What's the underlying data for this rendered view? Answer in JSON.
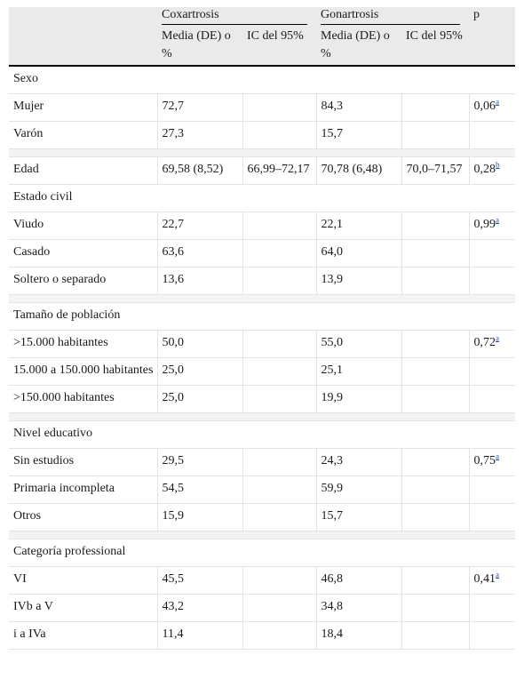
{
  "header": {
    "group_cox": "Coxartrosis",
    "group_gon": "Gonartrosis",
    "p_label": "p",
    "cox_mean": "Media (DE) o %",
    "cox_ci": "IC del 95%",
    "gon_mean": "Media (DE) o %",
    "gon_ci": "IC del 95%"
  },
  "rows": [
    {
      "type": "cat",
      "label": "Sexo"
    },
    {
      "type": "row",
      "label": "Mujer",
      "indent": true,
      "cm": "72,7",
      "cc": "",
      "gm": "84,3",
      "gc": "",
      "p": "0,06",
      "sup": "a"
    },
    {
      "type": "row",
      "label": "Varón",
      "indent": true,
      "cm": "27,3",
      "cc": "",
      "gm": "15,7",
      "gc": "",
      "p": "",
      "sup": ""
    },
    {
      "type": "spacer"
    },
    {
      "type": "row",
      "label": "Edad",
      "indent": false,
      "cm": "69,58 (8,52)",
      "cc": "66,99–72,17",
      "gm": "70,78 (6,48)",
      "gc": "70,0–71,57",
      "p": "0,28",
      "sup": "b"
    },
    {
      "type": "cat",
      "label": "Estado civil"
    },
    {
      "type": "row",
      "label": "Viudo",
      "indent": true,
      "cm": "22,7",
      "cc": "",
      "gm": "22,1",
      "gc": "",
      "p": "0,99",
      "sup": "a"
    },
    {
      "type": "row",
      "label": "Casado",
      "indent": true,
      "cm": "63,6",
      "cc": "",
      "gm": "64,0",
      "gc": "",
      "p": "",
      "sup": ""
    },
    {
      "type": "row",
      "label": "Soltero o separado",
      "indent": true,
      "cm": "13,6",
      "cc": "",
      "gm": "13,9",
      "gc": "",
      "p": "",
      "sup": ""
    },
    {
      "type": "spacer"
    },
    {
      "type": "cat",
      "label": "Tamaño de población"
    },
    {
      "type": "row",
      "label": ">15.000 habitantes",
      "indent": true,
      "cm": "50,0",
      "cc": "",
      "gm": "55,0",
      "gc": "",
      "p": "0,72",
      "sup": "a"
    },
    {
      "type": "row",
      "label": "15.000 a 150.000 habitantes",
      "indent": true,
      "cm": "25,0",
      "cc": "",
      "gm": "25,1",
      "gc": "",
      "p": "",
      "sup": ""
    },
    {
      "type": "row",
      "label": ">150.000 habitantes",
      "indent": true,
      "cm": "25,0",
      "cc": "",
      "gm": "19,9",
      "gc": "",
      "p": "",
      "sup": ""
    },
    {
      "type": "spacer"
    },
    {
      "type": "cat",
      "label": "Nivel educativo"
    },
    {
      "type": "row",
      "label": "Sin estudios",
      "indent": true,
      "cm": "29,5",
      "cc": "",
      "gm": "24,3",
      "gc": "",
      "p": "0,75",
      "sup": "a"
    },
    {
      "type": "row",
      "label": "Primaria incompleta",
      "indent": true,
      "cm": "54,5",
      "cc": "",
      "gm": "59,9",
      "gc": "",
      "p": "",
      "sup": ""
    },
    {
      "type": "row",
      "label": "Otros",
      "indent": true,
      "cm": "15,9",
      "cc": "",
      "gm": "15,7",
      "gc": "",
      "p": "",
      "sup": ""
    },
    {
      "type": "spacer"
    },
    {
      "type": "cat",
      "label": "Categoría professional"
    },
    {
      "type": "row",
      "label": "VI",
      "indent": true,
      "cm": "45,5",
      "cc": "",
      "gm": "46,8",
      "gc": "",
      "p": "0,41",
      "sup": "a"
    },
    {
      "type": "row",
      "label": "IVb a V",
      "indent": true,
      "cm": "43,2",
      "cc": "",
      "gm": "34,8",
      "gc": "",
      "p": "",
      "sup": ""
    },
    {
      "type": "row",
      "label": "i a IVa",
      "indent": true,
      "cm": "11,4",
      "cc": "",
      "gm": "18,4",
      "gc": "",
      "p": "",
      "sup": ""
    }
  ]
}
